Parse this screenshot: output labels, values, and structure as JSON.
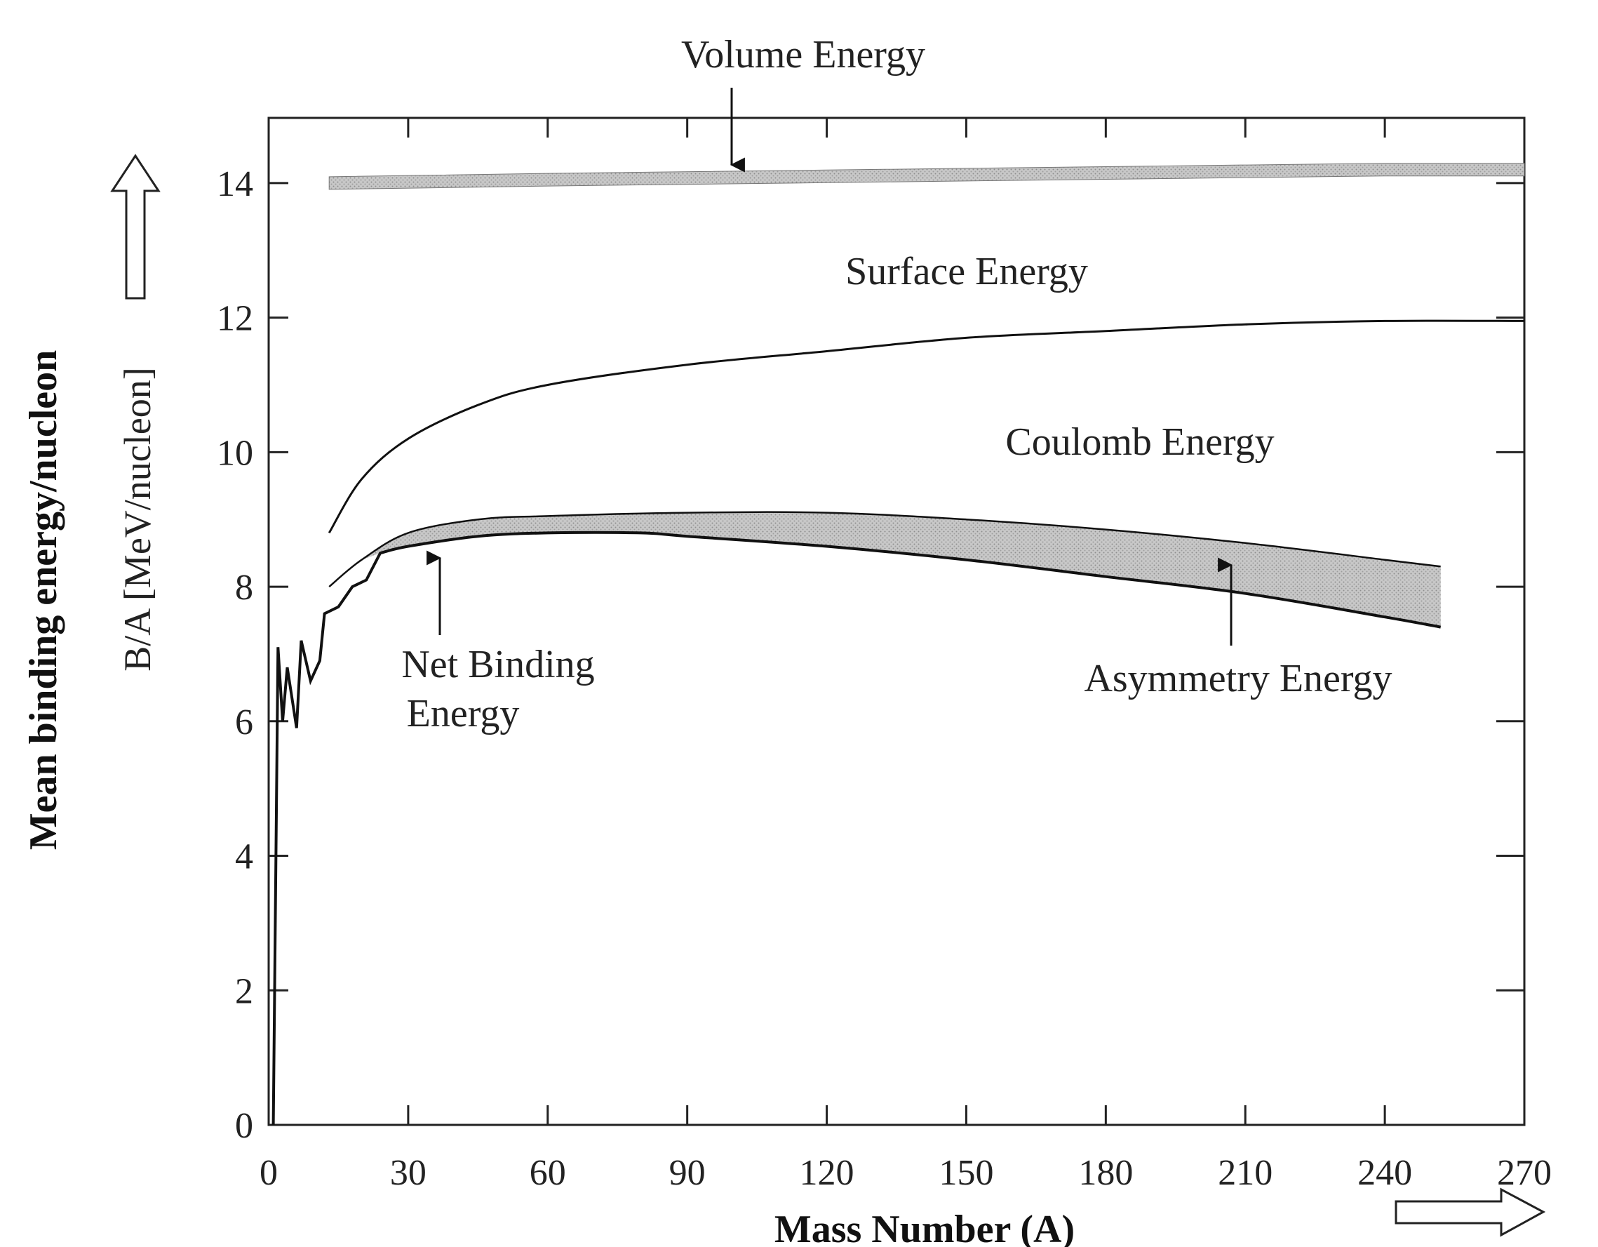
{
  "chart_data": {
    "type": "line",
    "title": "",
    "xlabel": "Mass Number (A)",
    "ylabel": "Mean binding energy/nucleon",
    "ylabel_unit": "B/A [MeV/nucleon]",
    "xlim": [
      0,
      270
    ],
    "ylim": [
      0,
      15
    ],
    "xticks": [
      0,
      30,
      60,
      90,
      120,
      150,
      180,
      210,
      240,
      270
    ],
    "yticks": [
      0,
      2,
      4,
      6,
      8,
      10,
      12,
      14
    ],
    "grid": false,
    "series": [
      {
        "name": "Volume Energy",
        "x": [
          13,
          60,
          120,
          180,
          240,
          270
        ],
        "y": [
          14.0,
          14.05,
          14.1,
          14.15,
          14.2,
          14.2
        ]
      },
      {
        "name": "Coulomb Energy",
        "x": [
          13,
          20,
          30,
          45,
          60,
          90,
          120,
          150,
          180,
          210,
          240,
          270
        ],
        "y": [
          8.8,
          9.6,
          10.2,
          10.7,
          11.0,
          11.3,
          11.5,
          11.7,
          11.8,
          11.9,
          11.95,
          11.95
        ]
      },
      {
        "name": "Asymmetry Energy",
        "x": [
          13,
          20,
          30,
          45,
          60,
          90,
          120,
          150,
          180,
          210,
          240,
          252
        ],
        "y": [
          8.0,
          8.4,
          8.8,
          9.0,
          9.05,
          9.1,
          9.1,
          9.0,
          8.85,
          8.65,
          8.4,
          8.3
        ]
      },
      {
        "name": "Net Binding Energy",
        "x": [
          1,
          2,
          3,
          4,
          6,
          7,
          9,
          11,
          12,
          15,
          18,
          21,
          24,
          30,
          45,
          60,
          80,
          90,
          120,
          150,
          180,
          210,
          240,
          252
        ],
        "y": [
          0,
          7.1,
          6.0,
          6.8,
          5.9,
          7.2,
          6.6,
          6.9,
          7.6,
          7.7,
          8.0,
          8.1,
          8.5,
          8.6,
          8.75,
          8.8,
          8.8,
          8.75,
          8.6,
          8.4,
          8.15,
          7.9,
          7.55,
          7.4
        ]
      }
    ],
    "annotations": [
      {
        "text": "Volume Energy",
        "x": 98,
        "y": 14.1
      },
      {
        "text": "Surface Energy",
        "x": 148,
        "y": 13.0
      },
      {
        "text": "Coulomb Energy",
        "x": 185,
        "y": 10.2
      },
      {
        "text": "Net Binding",
        "x": 35,
        "y": 6.8
      },
      {
        "text": "Energy",
        "x": 35,
        "y": 6.0
      },
      {
        "text": "Asymmetry Energy",
        "x": 207,
        "y": 6.6
      }
    ]
  }
}
